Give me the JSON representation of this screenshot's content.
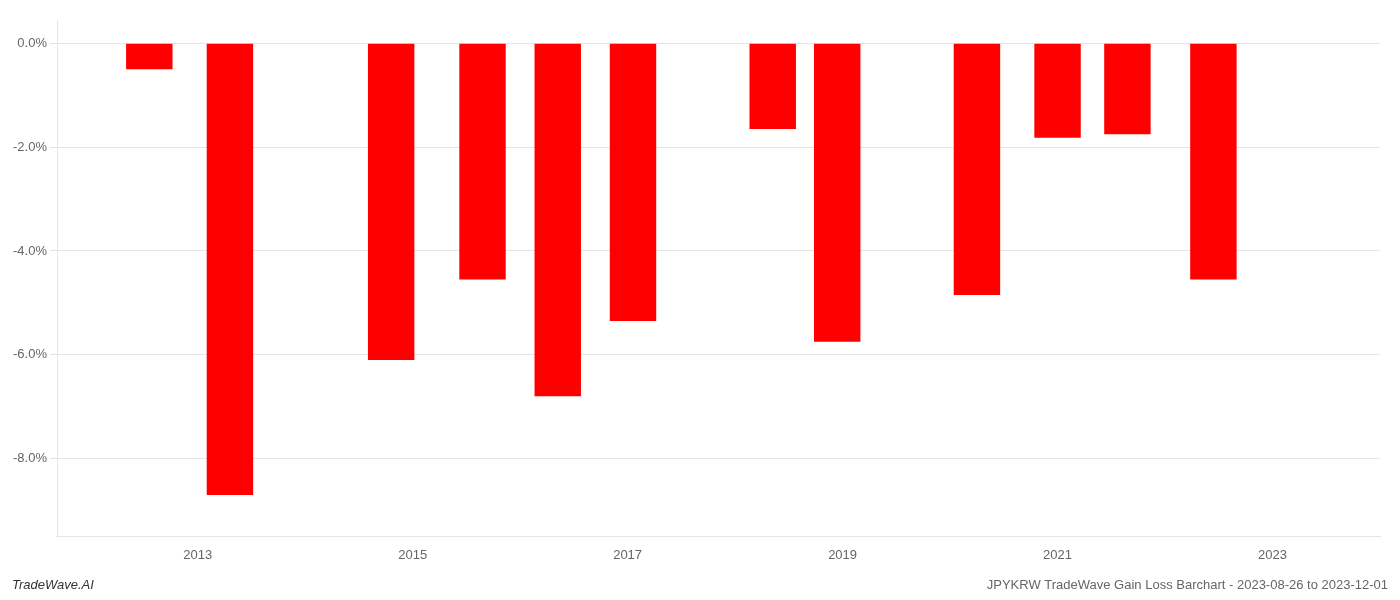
{
  "chart_data": {
    "type": "bar",
    "x": [
      2012.55,
      2013.3,
      2014.8,
      2015.65,
      2016.35,
      2017.05,
      2018.35,
      2018.95,
      2020.25,
      2021.0,
      2021.65,
      2022.45
    ],
    "values": [
      -0.5,
      -8.7,
      -6.1,
      -4.55,
      -6.8,
      -5.35,
      -1.65,
      -5.75,
      -4.85,
      -1.82,
      -1.75,
      -4.55
    ],
    "color": "#ff0000",
    "xlim": [
      2011.7,
      2024.0
    ],
    "xticks": [
      2013,
      2015,
      2017,
      2019,
      2021,
      2023
    ],
    "ylim": [
      -9.5,
      0.45
    ],
    "yticks": [
      {
        "value": 0.0,
        "label": "0.0%"
      },
      {
        "value": -2.0,
        "label": "-2.0%"
      },
      {
        "value": -4.0,
        "label": "-4.0%"
      },
      {
        "value": -6.0,
        "label": "-6.0%"
      },
      {
        "value": -8.0,
        "label": "-8.0%"
      }
    ],
    "grid": "y",
    "annotations": [
      "TradeWave.AI",
      "JPYKRW TradeWave Gain Loss Barchart - 2023-08-26 to 2023-12-01"
    ]
  }
}
